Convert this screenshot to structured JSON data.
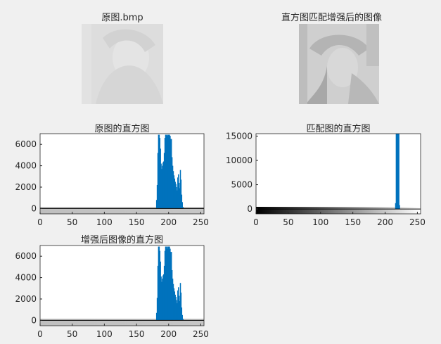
{
  "figure": {
    "original_title": "原图.bmp",
    "matched_title": "直方图匹配增强后的图像"
  },
  "colors": {
    "bar": "#0072bd",
    "axis": "#262626",
    "background": "#f0f0f0",
    "plot_bg": "#ffffff"
  },
  "chart_data": [
    {
      "id": "orig",
      "type": "bar",
      "title": "原图的直方图",
      "xlabel": "",
      "ylabel": "",
      "xlim": [
        0,
        255
      ],
      "ylim": [
        -500,
        7000
      ],
      "xticks": [
        0,
        50,
        100,
        150,
        200,
        250
      ],
      "yticks": [
        0,
        2000,
        4000,
        6000
      ],
      "colorbar": "gray-light",
      "series": [
        {
          "x": [
            181,
            182,
            183,
            184,
            185,
            186,
            187,
            188,
            189,
            190,
            191,
            192,
            193,
            194,
            195,
            196,
            197,
            198,
            199,
            200,
            201,
            202,
            203,
            204,
            205,
            206,
            207,
            208,
            209,
            210,
            211,
            212,
            213,
            214,
            215,
            216,
            217,
            218,
            219,
            220,
            221,
            222
          ],
          "values": [
            800,
            2200,
            5200,
            6900,
            6900,
            6600,
            5600,
            4200,
            3700,
            4000,
            4300,
            4400,
            5200,
            6600,
            6900,
            6900,
            6800,
            6900,
            6900,
            6900,
            6900,
            6800,
            6500,
            6500,
            4800,
            4000,
            3500,
            3100,
            2800,
            2500,
            2300,
            2000,
            1700,
            2900,
            3200,
            2400,
            1900,
            3600,
            2700,
            1300,
            600,
            150
          ]
        }
      ]
    },
    {
      "id": "matched",
      "type": "bar",
      "title": "匹配图的直方图",
      "xlabel": "",
      "ylabel": "",
      "xlim": [
        0,
        255
      ],
      "ylim": [
        -1000,
        15500
      ],
      "xticks": [
        0,
        50,
        100,
        150,
        200,
        250
      ],
      "yticks": [
        0,
        5000,
        10000,
        15000
      ],
      "colorbar": "gray-full",
      "series": [
        {
          "x": [
            216,
            217,
            218,
            219,
            220,
            221,
            222
          ],
          "values": [
            1200,
            15500,
            15500,
            15500,
            15500,
            15500,
            800
          ]
        }
      ]
    },
    {
      "id": "enhanced",
      "type": "bar",
      "title": "增强后图像的直方图",
      "xlabel": "",
      "ylabel": "",
      "xlim": [
        0,
        255
      ],
      "ylim": [
        -500,
        7000
      ],
      "xticks": [
        0,
        50,
        100,
        150,
        200,
        250
      ],
      "yticks": [
        0,
        2000,
        4000,
        6000
      ],
      "colorbar": "gray-light",
      "series": [
        {
          "x": [
            181,
            182,
            183,
            184,
            185,
            186,
            187,
            188,
            189,
            190,
            191,
            192,
            193,
            194,
            195,
            196,
            197,
            198,
            199,
            200,
            201,
            202,
            203,
            204,
            205,
            206,
            207,
            208,
            209,
            210,
            211,
            212,
            213,
            214,
            215,
            216,
            217,
            218,
            219,
            220,
            221,
            222
          ],
          "values": [
            700,
            2100,
            5100,
            6900,
            6900,
            6500,
            5500,
            4100,
            3600,
            3900,
            4200,
            4300,
            5100,
            6500,
            6900,
            6900,
            6700,
            6900,
            6900,
            6900,
            6900,
            6700,
            6400,
            6400,
            4700,
            3900,
            3400,
            3000,
            2700,
            2400,
            2200,
            1900,
            1600,
            2800,
            3100,
            2300,
            1800,
            3500,
            2600,
            1200,
            500,
            150
          ]
        }
      ]
    }
  ]
}
